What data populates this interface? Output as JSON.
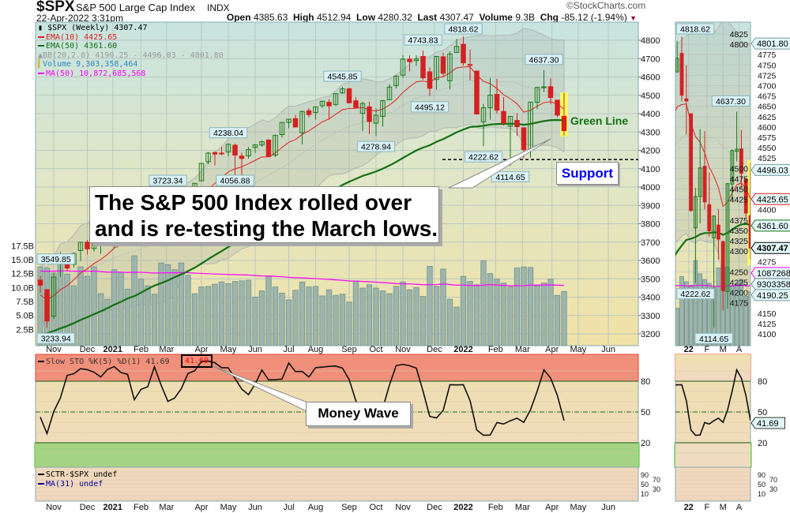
{
  "header": {
    "symbol": "$SPX",
    "name": "S&P 500 Large Cap Index",
    "exchange": "INDX",
    "datetime": "22-Apr-2022 3:31pm",
    "copyright": "©StockCharts.com",
    "open_label": "Open",
    "open": "4385.63",
    "high_label": "High",
    "high": "4512.94",
    "low_label": "Low",
    "low": "4280.32",
    "last_label": "Last",
    "last": "4307.47",
    "volume_label": "Volume",
    "volume": "9.3B",
    "chg_label": "Chg",
    "chg": "-85.12 (-1.94%)",
    "chg_icon": "down-triangle-icon"
  },
  "legend": {
    "price": "$SPX (Weekly) 4307.47",
    "ema10": "EMA(10) 4425.65",
    "ema50": "EMA(50) 4361.60",
    "bb": "BB(20,2.0) 4190.25 - 4496.03 - 4801.80",
    "volume": "Volume 9,303,358,464",
    "ma50": "MA(50) 10,872,685,568",
    "sto": "Slow STO %K(5) %D(1) 41.69",
    "sto_value": "41.69",
    "sctr": "SCTR-$SPX undef",
    "ma31": "MA(31) undef"
  },
  "annotations": {
    "callout_line1": "The S&P 500 Index rolled over",
    "callout_line2": "and is re-testing the March lows.",
    "green_line": "Green Line",
    "support": "Support",
    "money_wave": "Money Wave"
  },
  "colors": {
    "up": "#1a7a1a",
    "down": "#d42020",
    "ema10": "#e02020",
    "ema50": "#147014",
    "ma50_volume": "#ff00ff",
    "volume": "#9db5ae",
    "bb": "#aaaaaa",
    "sto_overbought": "#f0907a",
    "sto_oversold": "#a4d483",
    "highlight": "#ffff50",
    "support_text": "#0000ee"
  },
  "chart_data": {
    "type": "candlestick",
    "interval": "weekly",
    "ohlc": [
      [
        3493,
        3515,
        3424,
        3465
      ],
      [
        3441,
        3441,
        3233.94,
        3270
      ],
      [
        3296,
        3529,
        3280,
        3509
      ],
      [
        3583,
        3646,
        3511,
        3585
      ],
      [
        3600,
        3628,
        3543,
        3558
      ],
      [
        3579,
        3644,
        3562,
        3638
      ],
      [
        3654,
        3699,
        3595,
        3699
      ],
      [
        3699,
        3712,
        3633,
        3663
      ],
      [
        3665,
        3726,
        3648,
        3709
      ],
      [
        3684,
        3703,
        3636,
        3703
      ],
      [
        3723,
        3760,
        3703,
        3756
      ],
      [
        3764,
        3827,
        3663,
        3825
      ],
      [
        3803,
        3824,
        3750,
        3768
      ],
      [
        3781,
        3859,
        3760,
        3841
      ],
      [
        3857,
        3870,
        3695,
        3714
      ],
      [
        3731,
        3888,
        3725,
        3887
      ],
      [
        3892,
        3935,
        3880,
        3934
      ],
      [
        3939,
        3950,
        3866,
        3907
      ],
      [
        3886,
        3929,
        3805,
        3811
      ],
      [
        3842,
        3914,
        3723.34,
        3842
      ],
      [
        3844,
        3960,
        3768,
        3943
      ],
      [
        3949,
        3983,
        3871,
        3913
      ],
      [
        3917,
        3978,
        3853,
        3975
      ],
      [
        3970,
        4018,
        3951,
        4020
      ],
      [
        4034,
        4129,
        4034,
        4129
      ],
      [
        4138,
        4191,
        4124,
        4185
      ],
      [
        4188,
        4195,
        4118,
        4180
      ],
      [
        4185,
        4219,
        4173,
        4181
      ],
      [
        4191,
        4238.04,
        4169,
        4233
      ],
      [
        4228,
        4237,
        4056.88,
        4174
      ],
      [
        4169,
        4188,
        4061,
        4156
      ],
      [
        4170,
        4218,
        4155,
        4204
      ],
      [
        4216,
        4235,
        4186,
        4230
      ],
      [
        4229,
        4255,
        4220,
        4247
      ],
      [
        4256,
        4262,
        4165,
        4166
      ],
      [
        4174,
        4286,
        4164,
        4281
      ],
      [
        4286,
        4356,
        4270,
        4352
      ],
      [
        4352,
        4372,
        4320,
        4370
      ],
      [
        4373,
        4393,
        4327,
        4327
      ],
      [
        4296,
        4416,
        4233,
        4412
      ],
      [
        4416,
        4429,
        4379,
        4395
      ],
      [
        4406,
        4440,
        4368,
        4437
      ],
      [
        4443,
        4468,
        4431,
        4468
      ],
      [
        4462,
        4479,
        4367,
        4442
      ],
      [
        4450,
        4510,
        4442,
        4509
      ],
      [
        4513,
        4545.85,
        4508,
        4535
      ],
      [
        4535,
        4542,
        4457,
        4459
      ],
      [
        4470,
        4489,
        4429,
        4433
      ],
      [
        4402,
        4465,
        4305,
        4455
      ],
      [
        4437,
        4465,
        4288,
        4357
      ],
      [
        4348,
        4429,
        4278.94,
        4391
      ],
      [
        4385,
        4475,
        4329,
        4471
      ],
      [
        4476,
        4559,
        4475,
        4545
      ],
      [
        4553,
        4608,
        4537,
        4605
      ],
      [
        4610,
        4718,
        4595,
        4697
      ],
      [
        4697,
        4718,
        4630,
        4683
      ],
      [
        4689,
        4717,
        4660,
        4698
      ],
      [
        4712,
        4743.83,
        4585,
        4595
      ],
      [
        4628,
        4652,
        4495.12,
        4538
      ],
      [
        4586,
        4713,
        4531,
        4712
      ],
      [
        4710,
        4731,
        4600,
        4620
      ],
      [
        4579,
        4740,
        4531,
        4725
      ],
      [
        4733,
        4808,
        4733,
        4766
      ],
      [
        4778,
        4818.62,
        4662,
        4677
      ],
      [
        4668,
        4749,
        4582,
        4663
      ],
      [
        4632,
        4632,
        4395,
        4398
      ],
      [
        4356,
        4453,
        4222.62,
        4432
      ],
      [
        4432,
        4595,
        4367,
        4501
      ],
      [
        4505,
        4590,
        4401,
        4419
      ],
      [
        4412,
        4490,
        4335,
        4349
      ],
      [
        4332,
        4386,
        4114.65,
        4385
      ],
      [
        4363,
        4402,
        4279,
        4329
      ],
      [
        4323,
        4325,
        4157,
        4204
      ],
      [
        4202,
        4465,
        4161,
        4463
      ],
      [
        4462,
        4546,
        4424,
        4543
      ],
      [
        4541,
        4637.3,
        4517,
        4546
      ],
      [
        4547,
        4593,
        4450,
        4488
      ],
      [
        4474,
        4471,
        4381,
        4392
      ],
      [
        4385.63,
        4512.94,
        4280.32,
        4307.47
      ]
    ],
    "volume_billions": [
      13.7,
      13.5,
      12.6,
      15.8,
      12.4,
      10.3,
      13.7,
      12.0,
      13.7,
      8.9,
      7.9,
      13.2,
      12.7,
      9.7,
      15.7,
      11.5,
      10.3,
      8.8,
      14.4,
      14.1,
      13.2,
      14.4,
      12.2,
      8.9,
      10.1,
      10.2,
      10.6,
      11.0,
      10.7,
      11.1,
      11.2,
      11.3,
      8.3,
      9.4,
      12.1,
      10.1,
      9.0,
      7.8,
      9.5,
      11.0,
      10.1,
      10.2,
      8.5,
      9.6,
      8.6,
      8.8,
      7.4,
      11.2,
      9.9,
      10.5,
      9.9,
      9.4,
      8.9,
      10.2,
      11.0,
      9.6,
      10.0,
      8.4,
      13.8,
      10.2,
      13.3,
      7.9,
      6.5,
      12.0,
      11.1,
      10.5,
      14.8,
      12.5,
      11.5,
      10.8,
      10.1,
      13.5,
      13.7,
      13.6,
      10.3,
      10.8,
      11.5,
      8.6,
      9.3
    ],
    "price_axis": {
      "min": 3200,
      "max": 4800,
      "step": 100,
      "ticks": [
        "4800",
        "4700",
        "4600",
        "4500",
        "4400",
        "4300",
        "4200",
        "4100",
        "4000",
        "3900",
        "3800",
        "3700",
        "3600",
        "3500",
        "3400",
        "3300",
        "3200"
      ]
    },
    "volume_axis": {
      "ticks": [
        "17.5B",
        "15.0B",
        "12.5B",
        "10.0B",
        "7.5B",
        "5.0B",
        "2.5B"
      ],
      "values": [
        17.5,
        15,
        12.5,
        10,
        7.5,
        5,
        2.5
      ]
    },
    "x_ticks": [
      {
        "label": "Nov",
        "week": 2
      },
      {
        "label": "Dec",
        "week": 7
      },
      {
        "label": "2021",
        "week": 10.8,
        "bold": true
      },
      {
        "label": "Feb",
        "week": 15
      },
      {
        "label": "Mar",
        "week": 18.8
      },
      {
        "label": "Apr",
        "week": 24
      },
      {
        "label": "May",
        "week": 28
      },
      {
        "label": "Jun",
        "week": 32
      },
      {
        "label": "Jul",
        "week": 37
      },
      {
        "label": "Aug",
        "week": 41
      },
      {
        "label": "Sep",
        "week": 46
      },
      {
        "label": "Oct",
        "week": 50
      },
      {
        "label": "Nov",
        "week": 54
      },
      {
        "label": "Dec",
        "week": 58.7
      },
      {
        "label": "2022",
        "week": 63,
        "bold": true
      },
      {
        "label": "Feb",
        "week": 67.8
      },
      {
        "label": "Mar",
        "week": 71.8
      },
      {
        "label": "Apr",
        "week": 76.2
      },
      {
        "label": "May",
        "week": 80.1
      },
      {
        "label": "Jun",
        "week": 84.6
      }
    ],
    "price_labels": [
      {
        "text": "4818.62",
        "week": 63,
        "price": 4818.62,
        "kind": "high"
      },
      {
        "text": "4743.83",
        "week": 57,
        "price": 4743.83,
        "kind": "high"
      },
      {
        "text": "4637.30",
        "week": 75,
        "price": 4637.3,
        "kind": "high"
      },
      {
        "text": "4545.85",
        "week": 45,
        "price": 4545.85,
        "kind": "high"
      },
      {
        "text": "4495.12",
        "week": 58,
        "price": 4495.12,
        "kind": "low"
      },
      {
        "text": "4278.94",
        "week": 50,
        "price": 4278.94,
        "kind": "low"
      },
      {
        "text": "4238.04",
        "week": 28,
        "price": 4238.04,
        "kind": "high"
      },
      {
        "text": "4222.62",
        "week": 66,
        "price": 4222.62,
        "kind": "low"
      },
      {
        "text": "4114.65",
        "week": 70,
        "price": 4114.65,
        "kind": "low"
      },
      {
        "text": "4056.88",
        "week": 29,
        "price": 4056.88,
        "kind": "low"
      },
      {
        "text": "3723.34",
        "week": 19,
        "price": 3723.34,
        "kind": "low"
      },
      {
        "text": "3549.85",
        "week": -1,
        "price": 3549.85,
        "kind": "high"
      },
      {
        "text": "3233.94",
        "week": 1,
        "price": 3233.94,
        "kind": "low"
      }
    ],
    "support_level": 4150,
    "sto_levels": {
      "overbought": 80,
      "mid": 50,
      "oversold": 20,
      "ticks": [
        "80",
        "50",
        "20"
      ]
    },
    "sctr_ticks": [
      "90",
      "70",
      "50",
      "30",
      "10"
    ],
    "mini": {
      "first_week": 62,
      "price_ticks": [
        "4825",
        "4800",
        "4775",
        "4750",
        "4725",
        "4700",
        "4675",
        "4650",
        "4625",
        "4600",
        "4575",
        "4550",
        "4525",
        "4500",
        "4475",
        "4450",
        "4425",
        "4400",
        "4375",
        "4350",
        "4325",
        "4300",
        "4275",
        "4250",
        "4225",
        "4200",
        "4175",
        "4150",
        "4125",
        "4100"
      ],
      "x_ticks": [
        {
          "label": "22",
          "week": 64.5,
          "bold": true
        },
        {
          "label": "F",
          "week": 68.5
        },
        {
          "label": "M",
          "week": 72
        },
        {
          "label": "A",
          "week": 75.5
        }
      ],
      "tags": [
        {
          "text": "4801.80",
          "price": 4801.8,
          "color": "#7a9aa0"
        },
        {
          "text": "4496.03",
          "price": 4496.03,
          "color": "#7a9aa0"
        },
        {
          "text": "4425.65",
          "price": 4425.65,
          "color": "#e02020"
        },
        {
          "text": "4361.60",
          "price": 4361.6,
          "color": "#147014"
        },
        {
          "text": "4307.47",
          "price": 4307.47,
          "color": "#000000",
          "bold": true
        },
        {
          "text": "1087268",
          "price": 4247,
          "color": "#ff00ff"
        },
        {
          "text": "9303358",
          "price": 4225,
          "color": "#6f918a"
        },
        {
          "text": "4190.25",
          "price": 4203,
          "color": "#7a9aa0"
        }
      ],
      "sto_tag": "41.69"
    }
  }
}
